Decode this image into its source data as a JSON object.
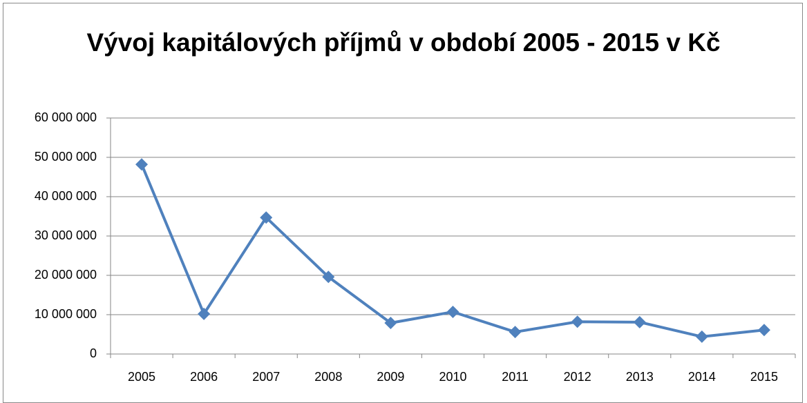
{
  "chart_data": {
    "type": "line",
    "title": "Vývoj kapitálových příjmů v období 2005 - 2015 v Kč",
    "categories": [
      "2005",
      "2006",
      "2007",
      "2008",
      "2009",
      "2010",
      "2011",
      "2012",
      "2013",
      "2014",
      "2015"
    ],
    "series": [
      {
        "color": "#4f81bd",
        "values": [
          48200000,
          10200000,
          34700000,
          19600000,
          7900000,
          10700000,
          5600000,
          8200000,
          8100000,
          4400000,
          6100000
        ]
      }
    ],
    "ylim": [
      0,
      60000000
    ],
    "yticks": [
      0,
      {
        "value": 10000000,
        "label": "10 000 000"
      },
      {
        "value": 20000000,
        "label": "20 000 000"
      },
      {
        "value": 30000000,
        "label": "30 000 000"
      },
      {
        "value": 40000000,
        "label": "40 000 000"
      },
      {
        "value": 50000000,
        "label": "50 000 000"
      },
      {
        "value": 60000000,
        "label": "60 000 000"
      }
    ],
    "grid": true
  }
}
